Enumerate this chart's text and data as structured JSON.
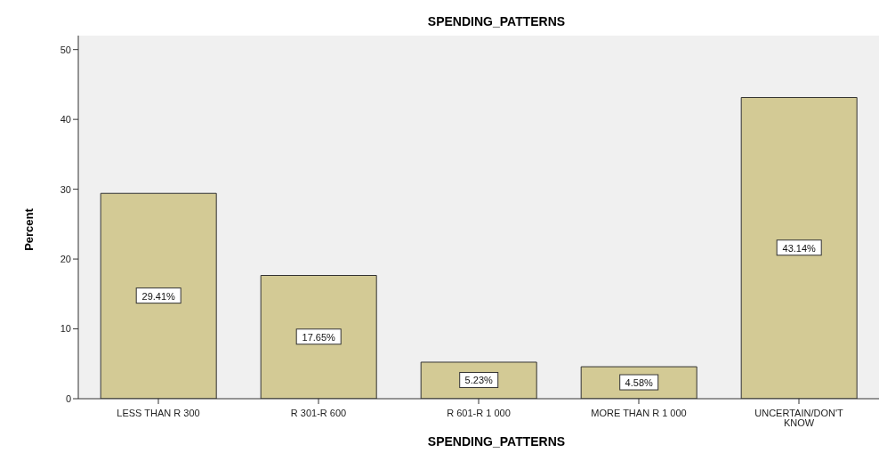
{
  "chart_data": {
    "type": "bar",
    "title": "SPENDING_PATTERNS",
    "xlabel": "SPENDING_PATTERNS",
    "ylabel": "Percent",
    "categories": [
      "LESS THAN R 300",
      "R 301-R 600",
      "R 601-R 1 000",
      "MORE THAN R 1 000",
      "UNCERTAIN/DON'T KNOW"
    ],
    "values": [
      29.41,
      17.65,
      5.23,
      4.58,
      43.14
    ],
    "value_labels": [
      "29.41%",
      "17.65%",
      "5.23%",
      "4.58%",
      "43.14%"
    ],
    "color": "#d3ca95",
    "ylim": [
      0,
      52
    ],
    "yticks": [
      0,
      10,
      20,
      30,
      40,
      50
    ],
    "grid": false,
    "legend": false
  }
}
